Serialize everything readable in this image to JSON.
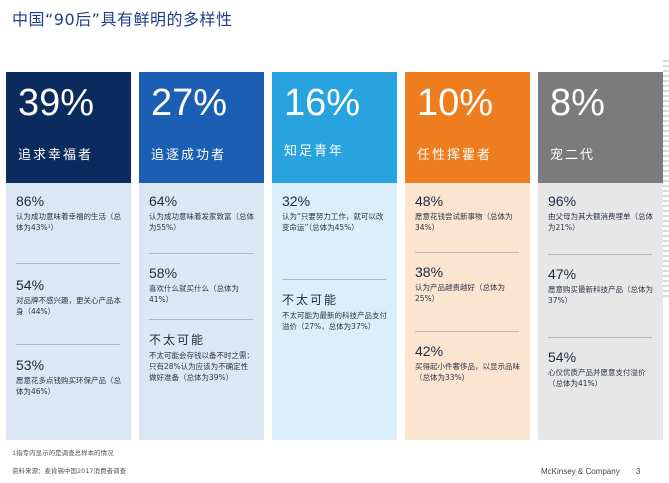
{
  "title": "中国“90后”具有鲜明的多样性",
  "columns": [
    {
      "percent": "39%",
      "label": "追求幸福者",
      "head_color": "#0b2a5e",
      "body_color": "#dce7f6",
      "items": [
        {
          "value": "86%",
          "desc": "认为成功意味着幸福的生活（总体为43%¹）"
        },
        {
          "value": "54%",
          "desc": "对品牌不感兴趣，更关心产品本身（44%）"
        },
        {
          "value": "53%",
          "desc": "愿意花多点钱购买环保产品（总体为46%）"
        }
      ]
    },
    {
      "percent": "27%",
      "label": "追逐成功者",
      "head_color": "#1b5fb4",
      "body_color": "#dce7f6",
      "items": [
        {
          "value": "64%",
          "desc": "认为成功意味着发家致富（总体为55%）"
        },
        {
          "value": "58%",
          "desc": "喜欢什么就买什么（总体为41%）"
        }
      ],
      "sub_heading": "不太可能",
      "sub_desc": "不太可能会存钱以备不时之需：只有28%认为应该为不确定性做好准备（总体为39%）"
    },
    {
      "percent": "16%",
      "label": "知足青年",
      "head_color": "#29a3e0",
      "body_color": "#dbeefb",
      "items": [
        {
          "value": "32%",
          "desc": "认为“只要努力工作，就可以改变命运”（总体为45%）"
        }
      ],
      "sub_heading": "不太可能",
      "sub_desc": "不太可能为最新的科技产品支付溢价（27%，总体为37%）"
    },
    {
      "percent": "10%",
      "label": "任性挥霍者",
      "head_color": "#ee7d1f",
      "body_color": "#fbe4d0",
      "items": [
        {
          "value": "48%",
          "desc": "愿意花钱尝试新事物（总体为34%）"
        },
        {
          "value": "38%",
          "desc": "认为产品越贵越好（总体为25%）"
        },
        {
          "value": "42%",
          "desc": "买得起小件奢侈品，以显示品味（总体为33%）"
        }
      ]
    },
    {
      "percent": "8%",
      "label": "宠二代",
      "head_color": "#7b7b7b",
      "body_color": "#e7e7e7",
      "items": [
        {
          "value": "96%",
          "desc": "由父母为其大额消费埋单（总体为21%）"
        },
        {
          "value": "47%",
          "desc": "愿意购买最新科技产品（总体为37%）"
        },
        {
          "value": "54%",
          "desc": "心仪优质产品并愿意支付溢价（总体为41%）"
        }
      ]
    }
  ],
  "footnote": "1指专内显示的是调查总样本的情况",
  "source": "资料来源：麦肯锡中国2017消费者调查",
  "brand": "McKinsey & Company",
  "page_number": "3"
}
